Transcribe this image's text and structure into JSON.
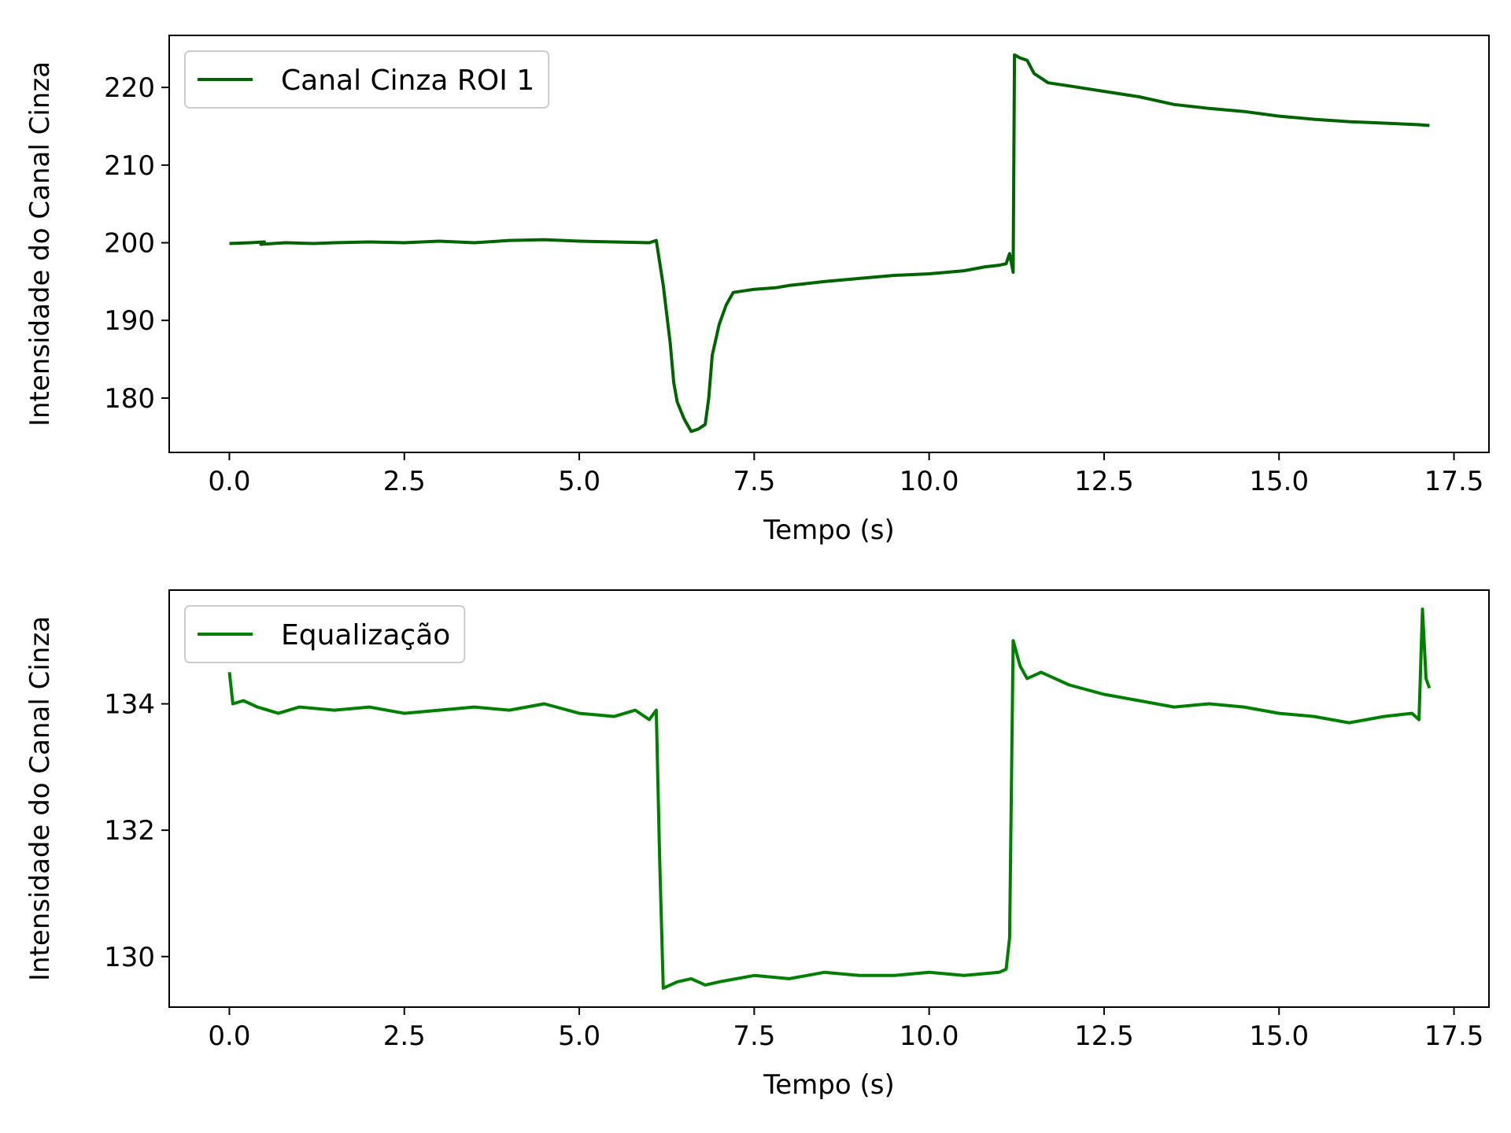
{
  "chart_data": [
    {
      "type": "line",
      "title": "",
      "xlabel": "Tempo (s)",
      "ylabel": "Intensidade do Canal Cinza",
      "xlim": [
        -0.86,
        18.0
      ],
      "ylim": [
        173.0,
        226.7
      ],
      "xticks": [
        0.0,
        2.5,
        5.0,
        7.5,
        10.0,
        12.5,
        15.0,
        17.5
      ],
      "xtick_labels": [
        "0.0",
        "2.5",
        "5.0",
        "7.5",
        "10.0",
        "12.5",
        "15.0",
        "17.5"
      ],
      "yticks": [
        180,
        190,
        200,
        210,
        220
      ],
      "ytick_labels": [
        "180",
        "190",
        "200",
        "210",
        "220"
      ],
      "grid": false,
      "legend_position": "top-left",
      "series": [
        {
          "name": "Canal Cinza ROI 1",
          "color": "#006400",
          "points": [
            [
              0.0,
              199.9
            ],
            [
              0.3,
              200.0
            ],
            [
              0.5,
              200.1
            ],
            [
              0.45,
              199.8
            ],
            [
              0.8,
              200.0
            ],
            [
              1.2,
              199.9
            ],
            [
              1.5,
              200.0
            ],
            [
              2.0,
              200.1
            ],
            [
              2.5,
              200.0
            ],
            [
              3.0,
              200.2
            ],
            [
              3.5,
              200.0
            ],
            [
              4.0,
              200.3
            ],
            [
              4.5,
              200.4
            ],
            [
              5.0,
              200.2
            ],
            [
              5.5,
              200.1
            ],
            [
              6.0,
              200.0
            ],
            [
              6.1,
              200.3
            ],
            [
              6.2,
              194.5
            ],
            [
              6.3,
              187.0
            ],
            [
              6.35,
              182.0
            ],
            [
              6.4,
              179.5
            ],
            [
              6.5,
              177.3
            ],
            [
              6.6,
              175.7
            ],
            [
              6.7,
              176.0
            ],
            [
              6.8,
              176.6
            ],
            [
              6.85,
              180.0
            ],
            [
              6.9,
              185.5
            ],
            [
              7.0,
              189.5
            ],
            [
              7.1,
              192.0
            ],
            [
              7.2,
              193.6
            ],
            [
              7.5,
              194.0
            ],
            [
              7.8,
              194.2
            ],
            [
              8.0,
              194.5
            ],
            [
              8.5,
              195.0
            ],
            [
              9.0,
              195.4
            ],
            [
              9.5,
              195.8
            ],
            [
              10.0,
              196.0
            ],
            [
              10.5,
              196.4
            ],
            [
              10.8,
              196.9
            ],
            [
              11.0,
              197.1
            ],
            [
              11.1,
              197.3
            ],
            [
              11.15,
              198.6
            ],
            [
              11.2,
              196.2
            ],
            [
              11.22,
              224.2
            ],
            [
              11.3,
              223.8
            ],
            [
              11.4,
              223.5
            ],
            [
              11.5,
              221.8
            ],
            [
              11.7,
              220.6
            ],
            [
              12.0,
              220.2
            ],
            [
              12.5,
              219.5
            ],
            [
              13.0,
              218.8
            ],
            [
              13.5,
              217.8
            ],
            [
              14.0,
              217.3
            ],
            [
              14.5,
              216.9
            ],
            [
              15.0,
              216.3
            ],
            [
              15.5,
              215.9
            ],
            [
              16.0,
              215.6
            ],
            [
              16.5,
              215.4
            ],
            [
              17.0,
              215.2
            ],
            [
              17.15,
              215.1
            ]
          ]
        }
      ]
    },
    {
      "type": "line",
      "title": "",
      "xlabel": "Tempo (s)",
      "ylabel": "Intensidade do Canal Cinza",
      "xlim": [
        -0.86,
        18.0
      ],
      "ylim": [
        129.2,
        135.8
      ],
      "xticks": [
        0.0,
        2.5,
        5.0,
        7.5,
        10.0,
        12.5,
        15.0,
        17.5
      ],
      "xtick_labels": [
        "0.0",
        "2.5",
        "5.0",
        "7.5",
        "10.0",
        "12.5",
        "15.0",
        "17.5"
      ],
      "yticks": [
        130,
        132,
        134
      ],
      "ytick_labels": [
        "130",
        "132",
        "134"
      ],
      "grid": false,
      "legend_position": "top-left",
      "series": [
        {
          "name": "Equalização",
          "color": "#008000",
          "points": [
            [
              0.0,
              134.5
            ],
            [
              0.05,
              134.0
            ],
            [
              0.2,
              134.05
            ],
            [
              0.4,
              133.95
            ],
            [
              0.7,
              133.85
            ],
            [
              1.0,
              133.95
            ],
            [
              1.5,
              133.9
            ],
            [
              2.0,
              133.95
            ],
            [
              2.5,
              133.85
            ],
            [
              3.0,
              133.9
            ],
            [
              3.5,
              133.95
            ],
            [
              4.0,
              133.9
            ],
            [
              4.5,
              134.0
            ],
            [
              5.0,
              133.85
            ],
            [
              5.5,
              133.8
            ],
            [
              5.8,
              133.9
            ],
            [
              6.0,
              133.75
            ],
            [
              6.1,
              133.9
            ],
            [
              6.15,
              131.5
            ],
            [
              6.2,
              129.5
            ],
            [
              6.4,
              129.6
            ],
            [
              6.6,
              129.65
            ],
            [
              6.8,
              129.55
            ],
            [
              7.0,
              129.6
            ],
            [
              7.5,
              129.7
            ],
            [
              8.0,
              129.65
            ],
            [
              8.5,
              129.75
            ],
            [
              9.0,
              129.7
            ],
            [
              9.5,
              129.7
            ],
            [
              10.0,
              129.75
            ],
            [
              10.5,
              129.7
            ],
            [
              11.0,
              129.75
            ],
            [
              11.1,
              129.8
            ],
            [
              11.15,
              130.3
            ],
            [
              11.2,
              135.0
            ],
            [
              11.3,
              134.6
            ],
            [
              11.4,
              134.4
            ],
            [
              11.6,
              134.5
            ],
            [
              11.8,
              134.4
            ],
            [
              12.0,
              134.3
            ],
            [
              12.5,
              134.15
            ],
            [
              13.0,
              134.05
            ],
            [
              13.5,
              133.95
            ],
            [
              14.0,
              134.0
            ],
            [
              14.5,
              133.95
            ],
            [
              15.0,
              133.85
            ],
            [
              15.5,
              133.8
            ],
            [
              16.0,
              133.7
            ],
            [
              16.5,
              133.8
            ],
            [
              16.9,
              133.85
            ],
            [
              17.0,
              133.75
            ],
            [
              17.05,
              135.5
            ],
            [
              17.1,
              134.4
            ],
            [
              17.15,
              134.25
            ]
          ]
        }
      ]
    }
  ]
}
